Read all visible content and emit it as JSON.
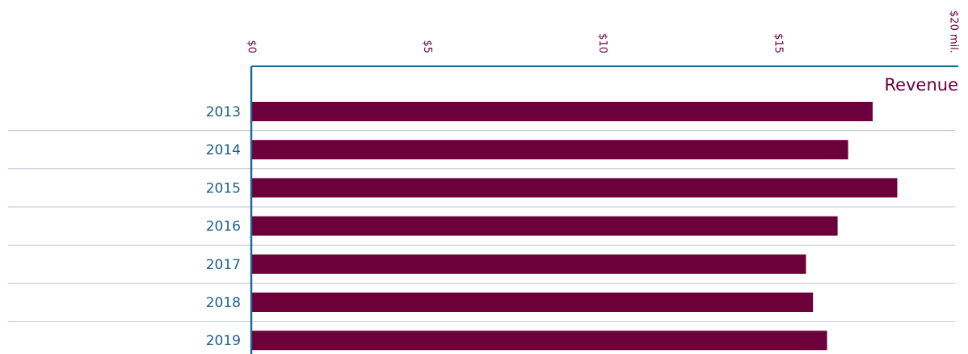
{
  "chart_data": {
    "type": "bar",
    "orientation": "horizontal",
    "categories": [
      "2013",
      "2014",
      "2015",
      "2016",
      "2017",
      "2018",
      "2019"
    ],
    "series": [
      {
        "name": "Revenue",
        "color": "#6b003a",
        "values": [
          17.7,
          17.0,
          18.4,
          16.7,
          15.8,
          16.0,
          16.4
        ]
      }
    ],
    "xlim": [
      0,
      20
    ],
    "xticks": [
      {
        "value": 0,
        "label": "$0"
      },
      {
        "value": 5,
        "label": "$5"
      },
      {
        "value": 10,
        "label": "$10"
      },
      {
        "value": 15,
        "label": "$15"
      },
      {
        "value": 20,
        "label": "$20 mil."
      }
    ],
    "axis_color": "#1a6a8e"
  }
}
